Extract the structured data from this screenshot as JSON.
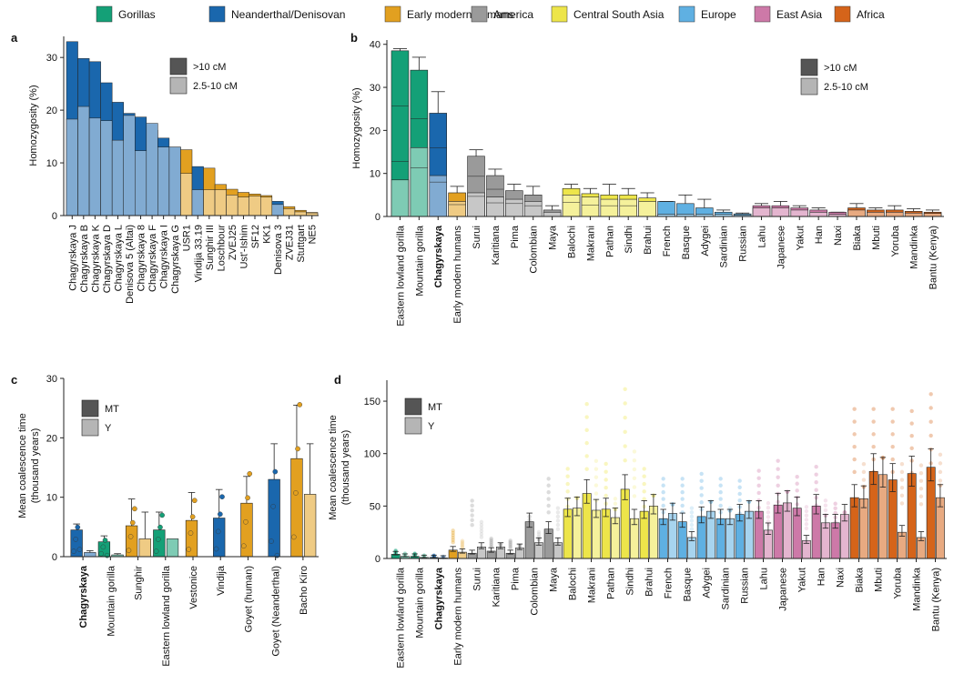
{
  "legend": [
    {
      "label": "Gorillas",
      "color": "#14a077"
    },
    {
      "label": "Neanderthal/Denisovan",
      "color": "#1a67ad"
    },
    {
      "label": "Early modern humans",
      "color": "#e2a020"
    },
    {
      "label": "America",
      "color": "#9a9a9a"
    },
    {
      "label": "Central South Asia",
      "color": "#ede54a"
    },
    {
      "label": "Europe",
      "color": "#5fb0e2"
    },
    {
      "label": "East Asia",
      "color": "#cd79a8"
    },
    {
      "label": "Africa",
      "color": "#d5641a"
    }
  ],
  "chart_data": [
    {
      "panel": "a",
      "type": "bar",
      "ylabel": "Homozygosity (%)",
      "ylim": [
        0,
        34
      ],
      "yticks": [
        0,
        10,
        20,
        30
      ],
      "inner_legend": [
        ">10 cM",
        "2.5-10 cM"
      ],
      "categories": [
        "Chagyrskaya J",
        "Chagyrskaya B",
        "Chagyrskaya K",
        "Chagyrskaya D",
        "Chagyrskaya L",
        "Denisova 5 (Altai)",
        "Chagyrskaya 8",
        "Chagyrskaya F",
        "Chagyrskaya I",
        "Chagyrskaya G",
        "USR1",
        "Vindija 33.19",
        "Sunghir III",
        "Loschbour",
        "ZVEJ25",
        "Ust'-Ishim",
        "SF12",
        "KK1",
        "Denisova 3",
        "ZVEJ31",
        "Stuttgart",
        "NE5"
      ],
      "groups": [
        "nd",
        "nd",
        "nd",
        "nd",
        "nd",
        "nd",
        "nd",
        "nd",
        "nd",
        "nd",
        "emh",
        "nd",
        "emh",
        "emh",
        "emh",
        "emh",
        "emh",
        "emh",
        "nd",
        "emh",
        "emh",
        "emh"
      ],
      "series": [
        {
          "name": ">10 cM",
          "values": [
            33.0,
            29.8,
            29.2,
            25.2,
            21.5,
            19.4,
            18.7,
            16.2,
            14.7,
            13.0,
            12.5,
            9.3,
            9.0,
            5.9,
            5.0,
            4.4,
            4.1,
            3.8,
            2.7,
            1.7,
            1.0,
            0.6
          ]
        },
        {
          "name": "2.5-10 cM",
          "values": [
            18.3,
            20.7,
            18.5,
            18.0,
            14.3,
            19.0,
            12.3,
            17.5,
            13.0,
            13.0,
            8.0,
            4.9,
            4.9,
            4.9,
            3.9,
            3.5,
            3.7,
            3.5,
            2.1,
            1.3,
            0.7,
            0.5
          ]
        }
      ]
    },
    {
      "panel": "b",
      "type": "bar",
      "ylabel": "Homozygosity (%)",
      "ylim": [
        0,
        40
      ],
      "yticks": [
        0,
        10,
        20,
        30,
        40
      ],
      "inner_legend": [
        ">10 cM",
        "2.5-10 cM"
      ],
      "categories": [
        "Eastern lowland gorilla",
        "Mountain gorilla",
        "Chagyrskaya",
        "Early modern humans",
        "Surui",
        "Karitiana",
        "Pima",
        "Colombian",
        "Maya",
        "Balochi",
        "Makrani",
        "Pathan",
        "Sindhi",
        "Brahui",
        "French",
        "Basque",
        "Adygei",
        "Sardinian",
        "Russian",
        "Lahu",
        "Japanese",
        "Yakut",
        "Han",
        "Naxi",
        "Biaka",
        "Mbuti",
        "Yoruba",
        "Mandinka",
        "Bantu (Kenya)"
      ],
      "bold_categories": [
        "Chagyrskaya"
      ],
      "groups": [
        "gor",
        "gor",
        "nd",
        "emh",
        "am",
        "am",
        "am",
        "am",
        "am",
        "csa",
        "csa",
        "csa",
        "csa",
        "csa",
        "eu",
        "eu",
        "eu",
        "eu",
        "eu",
        "ea",
        "ea",
        "ea",
        "ea",
        "ea",
        "af",
        "af",
        "af",
        "af",
        "af"
      ],
      "series": [
        {
          "name": ">10 cM",
          "values": [
            38.5,
            34.0,
            24.0,
            5.5,
            14.0,
            9.5,
            6.0,
            5.0,
            1.5,
            6.5,
            5.3,
            5.0,
            5.0,
            4.3,
            3.5,
            3.0,
            2.0,
            1.0,
            0.6,
            2.5,
            2.5,
            2.0,
            1.5,
            1.0,
            2.0,
            1.5,
            1.5,
            1.2,
            1.0
          ]
        },
        {
          "name": "2.5-10 cM",
          "values": [
            8.5,
            16.0,
            9.5,
            3.5,
            5.5,
            4.5,
            4.0,
            3.5,
            1.0,
            5.0,
            4.5,
            4.0,
            4.0,
            3.5,
            0.5,
            0.5,
            0.5,
            0.5,
            0.3,
            2.0,
            2.0,
            1.5,
            1.0,
            0.5,
            1.5,
            1.0,
            1.0,
            0.8,
            0.7
          ]
        }
      ],
      "error": [
        39.0,
        37.0,
        29.0,
        7.0,
        15.5,
        11.0,
        7.5,
        7.0,
        2.5,
        7.5,
        6.5,
        7.5,
        6.5,
        5.5,
        3.5,
        5.0,
        4.0,
        1.5,
        0.8,
        3.0,
        3.5,
        2.5,
        2.0,
        1.0,
        3.0,
        2.0,
        2.5,
        1.8,
        1.5
      ]
    },
    {
      "panel": "c",
      "type": "bar",
      "ylabel": "Mean coalescence time",
      "ylabel2": "(thousand years)",
      "ylim": [
        0,
        30
      ],
      "yticks": [
        0,
        10,
        20,
        30
      ],
      "inner_legend": [
        "MT",
        "Y"
      ],
      "categories": [
        "Chagyrskaya",
        "Mountain gorilla",
        "Sunghir",
        "Eastern lowland gorilla",
        "Vestonice",
        "Vindija",
        "Goyet (human)",
        "Goyet (Neanderthal)",
        "Bacho Kiro"
      ],
      "bold_categories": [
        "Chagyrskaya"
      ],
      "groups": [
        "nd",
        "gor",
        "emh",
        "gor",
        "emh",
        "nd",
        "emh",
        "nd",
        "emh"
      ],
      "series": [
        {
          "name": "MT",
          "values": [
            4.5,
            2.5,
            5.2,
            4.5,
            6.1,
            6.5,
            9.0,
            13.0,
            16.5
          ]
        },
        {
          "name": "Y",
          "values": [
            0.7,
            0.3,
            3.0,
            3.0,
            null,
            null,
            null,
            null,
            10.5
          ]
        }
      ],
      "error_mt": [
        5.5,
        3.5,
        9.7,
        7.5,
        10.8,
        11.3,
        13.5,
        19.0,
        25.5
      ],
      "error_y": [
        1.0,
        0.5,
        7.5,
        null,
        null,
        null,
        null,
        null,
        19.0
      ]
    },
    {
      "panel": "d",
      "type": "bar",
      "ylabel": "Mean coalescence time",
      "ylabel2": "(thousand years)",
      "ylim": [
        0,
        170
      ],
      "yticks": [
        0,
        50,
        100,
        150
      ],
      "inner_legend": [
        "MT",
        "Y"
      ],
      "categories": [
        "Eastern lowland gorilla",
        "Mountain gorilla",
        "Chagyrskaya",
        "Early modern humans",
        "Surui",
        "Karitiana",
        "Pima",
        "Colombian",
        "Maya",
        "Balochi",
        "Makrani",
        "Pathan",
        "Sindhi",
        "Brahui",
        "French",
        "Basque",
        "Adygei",
        "Sardinian",
        "Russian",
        "Lahu",
        "Japanese",
        "Yakut",
        "Han",
        "Naxi",
        "Biaka",
        "Mbuti",
        "Yoruba",
        "Mandinka",
        "Bantu (Kenya)"
      ],
      "bold_categories": [
        "Chagyrskaya"
      ],
      "groups": [
        "gor",
        "gor",
        "nd",
        "emh",
        "am",
        "am",
        "am",
        "am",
        "am",
        "csa",
        "csa",
        "csa",
        "csa",
        "csa",
        "eu",
        "eu",
        "eu",
        "eu",
        "eu",
        "ea",
        "ea",
        "ea",
        "ea",
        "ea",
        "af",
        "af",
        "af",
        "af",
        "af"
      ],
      "series": [
        {
          "name": "MT",
          "values": [
            4,
            2,
            1,
            8,
            5,
            7,
            5,
            35,
            28,
            47,
            62,
            47,
            66,
            45,
            38,
            35,
            40,
            38,
            42,
            45,
            51,
            48,
            50,
            34,
            58,
            83,
            75,
            81,
            87
          ]
        },
        {
          "name": "Y",
          "values": [
            2,
            1,
            0.5,
            6,
            11,
            11,
            10,
            15,
            15,
            48,
            46,
            39,
            38,
            50,
            43,
            20,
            45,
            38,
            45,
            27,
            53,
            17,
            34,
            42,
            57,
            80,
            25,
            20,
            58
          ]
        }
      ],
      "scatter_max": [
        8,
        5,
        3,
        28,
        58,
        20,
        18,
        42,
        80,
        90,
        155,
        95,
        170,
        90,
        80,
        80,
        85,
        80,
        78,
        88,
        98,
        82,
        92,
        55,
        150,
        150,
        150,
        148,
        165
      ]
    }
  ]
}
